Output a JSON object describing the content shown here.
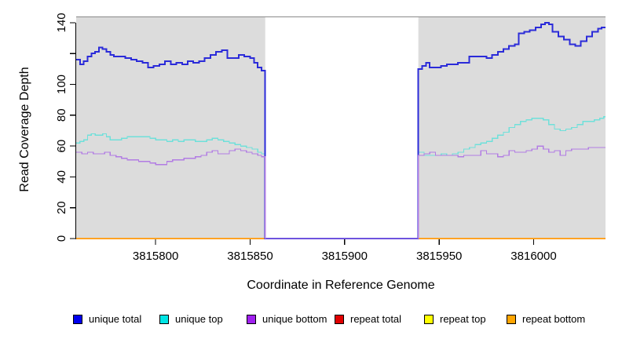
{
  "colors": {
    "background": "#FFFFFF",
    "panel_fill": "#DCDCDC",
    "panel_border": "#8A8A8A",
    "axis": "#000000",
    "tick_label": "#000000"
  },
  "chart_data": {
    "type": "line",
    "subtype": "step",
    "title": "",
    "xlabel": "Coordinate in Reference Genome",
    "ylabel": "Read Coverage Depth",
    "legend_position": "bottom",
    "grid": false,
    "axis": {
      "xlim": [
        3815758,
        3816038
      ],
      "ylim": [
        0,
        140
      ],
      "y_plot_max": 144,
      "x_ticks": [
        {
          "value": 3815800,
          "label": "3815800"
        },
        {
          "value": 3815850,
          "label": "3815850"
        },
        {
          "value": 3815900,
          "label": "3815900"
        },
        {
          "value": 3815950,
          "label": "3815950"
        },
        {
          "value": 3816000,
          "label": "3816000"
        }
      ],
      "y_ticks": [
        {
          "value": 0,
          "label": "0"
        },
        {
          "value": 20,
          "label": "20"
        },
        {
          "value": 40,
          "label": "40"
        },
        {
          "value": 60,
          "label": "60"
        },
        {
          "value": 80,
          "label": "80"
        },
        {
          "value": 100,
          "label": "100"
        },
        {
          "value": 120,
          "label": ""
        },
        {
          "value": 140,
          "label": "140"
        }
      ]
    },
    "covered_regions": [
      {
        "from": 3815758,
        "to": 3815858
      },
      {
        "from": 3815939,
        "to": 3816038
      }
    ],
    "zero_coverage_gap": {
      "from": 3815858,
      "to": 3815939
    },
    "series": [
      {
        "name": "unique total",
        "line_color": "#2B2BD9",
        "swatch_color": "#0000EE",
        "line_width": 2,
        "points": [
          [
            3815758,
            116
          ],
          [
            3815760,
            113
          ],
          [
            3815762,
            115
          ],
          [
            3815764,
            118
          ],
          [
            3815766,
            120
          ],
          [
            3815768,
            121
          ],
          [
            3815770,
            124
          ],
          [
            3815772,
            123
          ],
          [
            3815774,
            121
          ],
          [
            3815776,
            119
          ],
          [
            3815778,
            118
          ],
          [
            3815781,
            118
          ],
          [
            3815784,
            117
          ],
          [
            3815787,
            116
          ],
          [
            3815790,
            115
          ],
          [
            3815793,
            114
          ],
          [
            3815796,
            111
          ],
          [
            3815799,
            112
          ],
          [
            3815802,
            113
          ],
          [
            3815805,
            115
          ],
          [
            3815808,
            113
          ],
          [
            3815811,
            114
          ],
          [
            3815814,
            113
          ],
          [
            3815817,
            115
          ],
          [
            3815820,
            114
          ],
          [
            3815823,
            115
          ],
          [
            3815826,
            117
          ],
          [
            3815829,
            119
          ],
          [
            3815832,
            121
          ],
          [
            3815835,
            122
          ],
          [
            3815838,
            117
          ],
          [
            3815841,
            117
          ],
          [
            3815844,
            119
          ],
          [
            3815847,
            118
          ],
          [
            3815850,
            117
          ],
          [
            3815852,
            114
          ],
          [
            3815854,
            111
          ],
          [
            3815856,
            109
          ],
          [
            3815858,
            0
          ],
          [
            3815939,
            110
          ],
          [
            3815941,
            112
          ],
          [
            3815943,
            114
          ],
          [
            3815945,
            111
          ],
          [
            3815948,
            111
          ],
          [
            3815951,
            112
          ],
          [
            3815954,
            113
          ],
          [
            3815957,
            113
          ],
          [
            3815960,
            114
          ],
          [
            3815963,
            114
          ],
          [
            3815966,
            118
          ],
          [
            3815969,
            118
          ],
          [
            3815972,
            118
          ],
          [
            3815975,
            117
          ],
          [
            3815978,
            119
          ],
          [
            3815981,
            121
          ],
          [
            3815984,
            123
          ],
          [
            3815987,
            125
          ],
          [
            3815990,
            126
          ],
          [
            3815992,
            133
          ],
          [
            3815995,
            134
          ],
          [
            3815998,
            135
          ],
          [
            3816001,
            137
          ],
          [
            3816004,
            139
          ],
          [
            3816006,
            140
          ],
          [
            3816008,
            139
          ],
          [
            3816010,
            134
          ],
          [
            3816013,
            131
          ],
          [
            3816016,
            129
          ],
          [
            3816019,
            126
          ],
          [
            3816022,
            125
          ],
          [
            3816025,
            128
          ],
          [
            3816028,
            131
          ],
          [
            3816031,
            134
          ],
          [
            3816034,
            136
          ],
          [
            3816036,
            137
          ]
        ]
      },
      {
        "name": "unique top",
        "line_color": "#6FE0DA",
        "swatch_color": "#00E5E5",
        "line_width": 1.3,
        "points": [
          [
            3815758,
            62
          ],
          [
            3815760,
            63
          ],
          [
            3815762,
            64
          ],
          [
            3815764,
            67
          ],
          [
            3815766,
            68
          ],
          [
            3815768,
            67
          ],
          [
            3815770,
            67
          ],
          [
            3815772,
            68
          ],
          [
            3815774,
            66
          ],
          [
            3815776,
            64
          ],
          [
            3815779,
            64
          ],
          [
            3815782,
            65
          ],
          [
            3815785,
            66
          ],
          [
            3815788,
            66
          ],
          [
            3815791,
            66
          ],
          [
            3815794,
            66
          ],
          [
            3815797,
            65
          ],
          [
            3815800,
            64
          ],
          [
            3815803,
            64
          ],
          [
            3815806,
            63
          ],
          [
            3815809,
            64
          ],
          [
            3815812,
            63
          ],
          [
            3815815,
            64
          ],
          [
            3815818,
            64
          ],
          [
            3815821,
            63
          ],
          [
            3815824,
            63
          ],
          [
            3815827,
            64
          ],
          [
            3815830,
            65
          ],
          [
            3815833,
            64
          ],
          [
            3815836,
            63
          ],
          [
            3815839,
            62
          ],
          [
            3815842,
            61
          ],
          [
            3815845,
            60
          ],
          [
            3815848,
            59
          ],
          [
            3815851,
            58
          ],
          [
            3815854,
            56
          ],
          [
            3815856,
            55
          ],
          [
            3815858,
            0
          ],
          [
            3815939,
            56
          ],
          [
            3815942,
            54
          ],
          [
            3815945,
            54
          ],
          [
            3815948,
            54
          ],
          [
            3815951,
            55
          ],
          [
            3815954,
            54
          ],
          [
            3815957,
            55
          ],
          [
            3815960,
            56
          ],
          [
            3815963,
            58
          ],
          [
            3815966,
            59
          ],
          [
            3815969,
            61
          ],
          [
            3815972,
            62
          ],
          [
            3815975,
            63
          ],
          [
            3815978,
            65
          ],
          [
            3815981,
            67
          ],
          [
            3815984,
            69
          ],
          [
            3815987,
            72
          ],
          [
            3815990,
            74
          ],
          [
            3815993,
            76
          ],
          [
            3815996,
            77
          ],
          [
            3815999,
            78
          ],
          [
            3816002,
            78
          ],
          [
            3816005,
            77
          ],
          [
            3816008,
            74
          ],
          [
            3816011,
            71
          ],
          [
            3816014,
            70
          ],
          [
            3816017,
            71
          ],
          [
            3816020,
            72
          ],
          [
            3816023,
            74
          ],
          [
            3816026,
            76
          ],
          [
            3816029,
            76
          ],
          [
            3816032,
            77
          ],
          [
            3816035,
            78
          ],
          [
            3816037,
            79
          ]
        ]
      },
      {
        "name": "unique bottom",
        "line_color": "#B27CE3",
        "swatch_color": "#A020F0",
        "line_width": 1.3,
        "points": [
          [
            3815758,
            56
          ],
          [
            3815761,
            55
          ],
          [
            3815764,
            56
          ],
          [
            3815767,
            55
          ],
          [
            3815770,
            55
          ],
          [
            3815773,
            56
          ],
          [
            3815776,
            54
          ],
          [
            3815779,
            53
          ],
          [
            3815782,
            52
          ],
          [
            3815785,
            51
          ],
          [
            3815788,
            51
          ],
          [
            3815791,
            50
          ],
          [
            3815794,
            50
          ],
          [
            3815797,
            49
          ],
          [
            3815800,
            48
          ],
          [
            3815803,
            48
          ],
          [
            3815806,
            50
          ],
          [
            3815809,
            51
          ],
          [
            3815812,
            51
          ],
          [
            3815815,
            52
          ],
          [
            3815818,
            52
          ],
          [
            3815821,
            53
          ],
          [
            3815824,
            54
          ],
          [
            3815827,
            56
          ],
          [
            3815830,
            57
          ],
          [
            3815833,
            55
          ],
          [
            3815836,
            55
          ],
          [
            3815839,
            57
          ],
          [
            3815842,
            58
          ],
          [
            3815845,
            57
          ],
          [
            3815848,
            56
          ],
          [
            3815851,
            55
          ],
          [
            3815854,
            54
          ],
          [
            3815856,
            53
          ],
          [
            3815858,
            0
          ],
          [
            3815939,
            54
          ],
          [
            3815942,
            55
          ],
          [
            3815945,
            56
          ],
          [
            3815948,
            54
          ],
          [
            3815951,
            54
          ],
          [
            3815954,
            54
          ],
          [
            3815957,
            54
          ],
          [
            3815960,
            53
          ],
          [
            3815963,
            54
          ],
          [
            3815966,
            54
          ],
          [
            3815969,
            54
          ],
          [
            3815972,
            57
          ],
          [
            3815975,
            55
          ],
          [
            3815978,
            55
          ],
          [
            3815981,
            53
          ],
          [
            3815984,
            54
          ],
          [
            3815987,
            57
          ],
          [
            3815990,
            56
          ],
          [
            3815993,
            56
          ],
          [
            3815996,
            57
          ],
          [
            3815999,
            58
          ],
          [
            3816002,
            60
          ],
          [
            3816005,
            58
          ],
          [
            3816008,
            56
          ],
          [
            3816011,
            57
          ],
          [
            3816014,
            54
          ],
          [
            3816017,
            57
          ],
          [
            3816020,
            58
          ],
          [
            3816023,
            58
          ],
          [
            3816026,
            58
          ],
          [
            3816029,
            59
          ],
          [
            3816032,
            59
          ],
          [
            3816035,
            59
          ],
          [
            3816037,
            59
          ]
        ]
      },
      {
        "name": "repeat total",
        "line_color": "#D90000",
        "swatch_color": "#E00000",
        "line_width": 1.5,
        "points": [
          [
            3815758,
            0
          ],
          [
            3816038,
            0
          ]
        ]
      },
      {
        "name": "repeat top",
        "line_color": "#FFFF00",
        "swatch_color": "#FFFF00",
        "line_width": 1.5,
        "points": [
          [
            3815758,
            0
          ],
          [
            3816038,
            0
          ]
        ]
      },
      {
        "name": "repeat bottom",
        "line_color": "#FFA224",
        "swatch_color": "#FFA500",
        "line_width": 1.8,
        "points": [
          [
            3815758,
            0
          ],
          [
            3816038,
            0
          ]
        ]
      }
    ]
  }
}
